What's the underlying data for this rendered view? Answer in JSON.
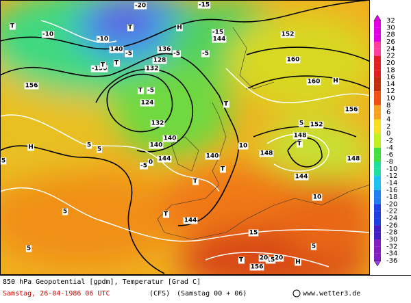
{
  "map": {
    "labels": [
      "-20",
      "T",
      "T",
      "H",
      "-15",
      "144",
      "140",
      "-10",
      "-10",
      "-5",
      "136",
      "T",
      "128",
      "-136",
      "132",
      "-5",
      "T",
      "-5",
      "124",
      "132",
      "5",
      "144",
      "140",
      "T",
      "T",
      "-5",
      "H",
      "160",
      "156",
      "5",
      "0",
      "T",
      "140",
      "T",
      "148",
      "5",
      "T",
      "144",
      "5",
      "10",
      "15",
      "20",
      "H",
      "T",
      "148",
      "152",
      "156",
      "160",
      "T",
      "10",
      "5",
      "-5",
      "148",
      "144",
      "5",
      "156",
      "5",
      "15",
      "20",
      "H",
      "140",
      "-15",
      "152"
    ],
    "colorbar": [
      32,
      30,
      28,
      26,
      24,
      22,
      20,
      18,
      16,
      14,
      12,
      10,
      8,
      6,
      4,
      2,
      0,
      -2,
      -4,
      -6,
      -8,
      -10,
      -12,
      -14,
      -16,
      -18,
      -20,
      -22,
      -24,
      -26,
      -28,
      -30,
      -32,
      -34,
      -36
    ]
  },
  "footer": {
    "title": "850 hPa Geopotential [gpdm], Temperatur [Grad C]",
    "date": "Samstag, 26-04-1986  06 UTC",
    "model": "(CFS)",
    "run": "(Samstag 00 + 06)",
    "site": "www.wetter3.de"
  }
}
